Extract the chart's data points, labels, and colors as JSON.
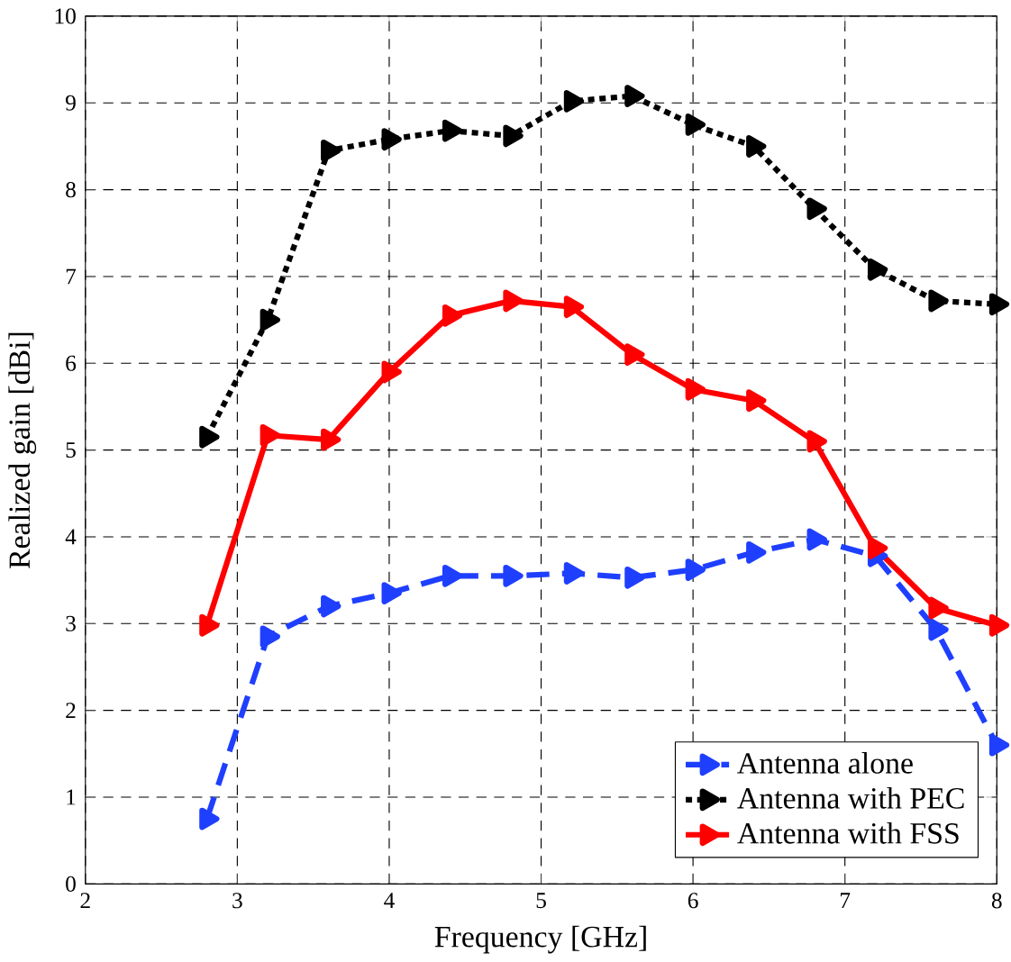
{
  "chart_data": {
    "type": "line",
    "xlabel": "Frequency [GHz]",
    "ylabel": "Realized gain [dBi]",
    "x": [
      2.8,
      3.2,
      3.6,
      4.0,
      4.4,
      4.8,
      5.2,
      5.6,
      6.0,
      6.4,
      6.8,
      7.2,
      7.6,
      8.0
    ],
    "series": [
      {
        "name": "Antenna alone",
        "color": "#1f3fff",
        "line_style": "dashed",
        "values": [
          0.75,
          2.85,
          3.2,
          3.35,
          3.55,
          3.55,
          3.58,
          3.53,
          3.62,
          3.82,
          3.97,
          3.78,
          2.93,
          1.6
        ]
      },
      {
        "name": "Antenna with PEC",
        "color": "#000000",
        "line_style": "dotted",
        "values": [
          5.15,
          6.5,
          8.45,
          8.58,
          8.68,
          8.62,
          9.02,
          9.08,
          8.75,
          8.5,
          7.78,
          7.08,
          6.72,
          6.68
        ]
      },
      {
        "name": "Antenna with FSS",
        "color": "#ff0000",
        "line_style": "solid",
        "values": [
          2.98,
          5.17,
          5.12,
          5.9,
          6.55,
          6.72,
          6.65,
          6.1,
          5.7,
          5.57,
          5.1,
          3.87,
          3.18,
          2.98
        ]
      }
    ],
    "xlim": [
      2,
      8
    ],
    "ylim": [
      0,
      10
    ],
    "xticks": [
      2,
      3,
      4,
      5,
      6,
      7,
      8
    ],
    "yticks": [
      0,
      1,
      2,
      3,
      4,
      5,
      6,
      7,
      8,
      9,
      10
    ],
    "grid": true,
    "legend": "bottom right",
    "marker": "triangle"
  }
}
